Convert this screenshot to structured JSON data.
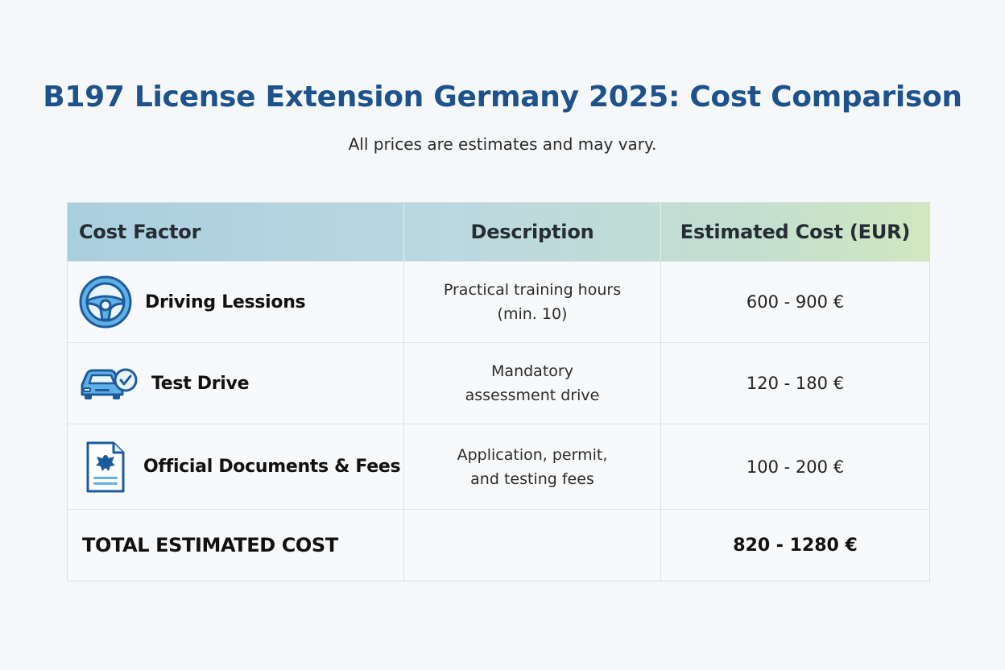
{
  "title": "B197 License Extension Germany 2025: Cost Comparison",
  "subtitle": "All prices are estimates and may vary.",
  "table": {
    "headers": [
      "Cost Factor",
      "Description",
      "Estimated Cost (EUR)"
    ],
    "rows": [
      {
        "icon": "steering-wheel-icon",
        "factor": "Driving Lessions",
        "description": "Practical training hours\n(min. 10)",
        "cost": "600 - 900 €"
      },
      {
        "icon": "car-check-icon",
        "factor": "Test Drive",
        "description": "Mandatory\nassessment drive",
        "cost": "120 - 180 €"
      },
      {
        "icon": "official-document-icon",
        "factor": "Official Documents & Fees",
        "description": "Application, permit,\nand testing fees",
        "cost": "100 - 200 €"
      }
    ],
    "total": {
      "label": "TOTAL ESTIMATED COST",
      "description": "",
      "cost": "820 - 1280 €"
    }
  },
  "colors": {
    "title": "#1d528c",
    "icon_stroke": "#1e5b9c",
    "icon_fill": "#5fb0e6"
  }
}
